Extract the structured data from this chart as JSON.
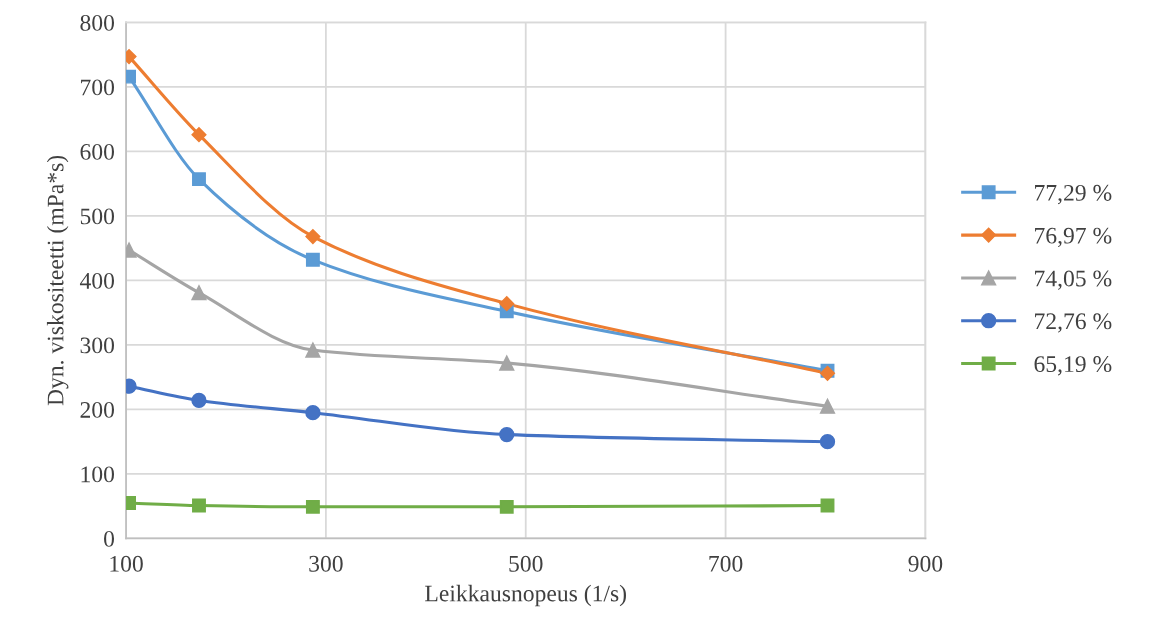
{
  "chart_data": {
    "type": "line",
    "xlabel": "Leikkausnopeus (1/s)",
    "ylabel": "Dyn. viskositeetti (mPa*s)",
    "x": [
      103,
      173,
      287,
      481,
      802
    ],
    "series": [
      {
        "name": "77,29 %",
        "color": "#5b9bd5",
        "marker": "square",
        "values": [
          716,
          557,
          432,
          352,
          260
        ]
      },
      {
        "name": "76,97 %",
        "color": "#ed7d31",
        "marker": "diamond",
        "values": [
          747,
          626,
          468,
          364,
          256
        ]
      },
      {
        "name": "74,05 %",
        "color": "#a5a5a5",
        "marker": "triangle",
        "values": [
          447,
          381,
          292,
          272,
          205
        ]
      },
      {
        "name": "72,76 %",
        "color": "#4472c4",
        "marker": "circle",
        "values": [
          236,
          214,
          195,
          161,
          150
        ]
      },
      {
        "name": "65,19 %",
        "color": "#70ad47",
        "marker": "square",
        "values": [
          55,
          51,
          49,
          49,
          51
        ]
      }
    ],
    "xlim": [
      100,
      900
    ],
    "xticks": [
      100,
      300,
      500,
      700,
      900
    ],
    "ylim": [
      0,
      800
    ],
    "yticks": [
      0,
      100,
      200,
      300,
      400,
      500,
      600,
      700,
      800
    ],
    "grid": true,
    "legend": "right",
    "line_style": "solid"
  }
}
